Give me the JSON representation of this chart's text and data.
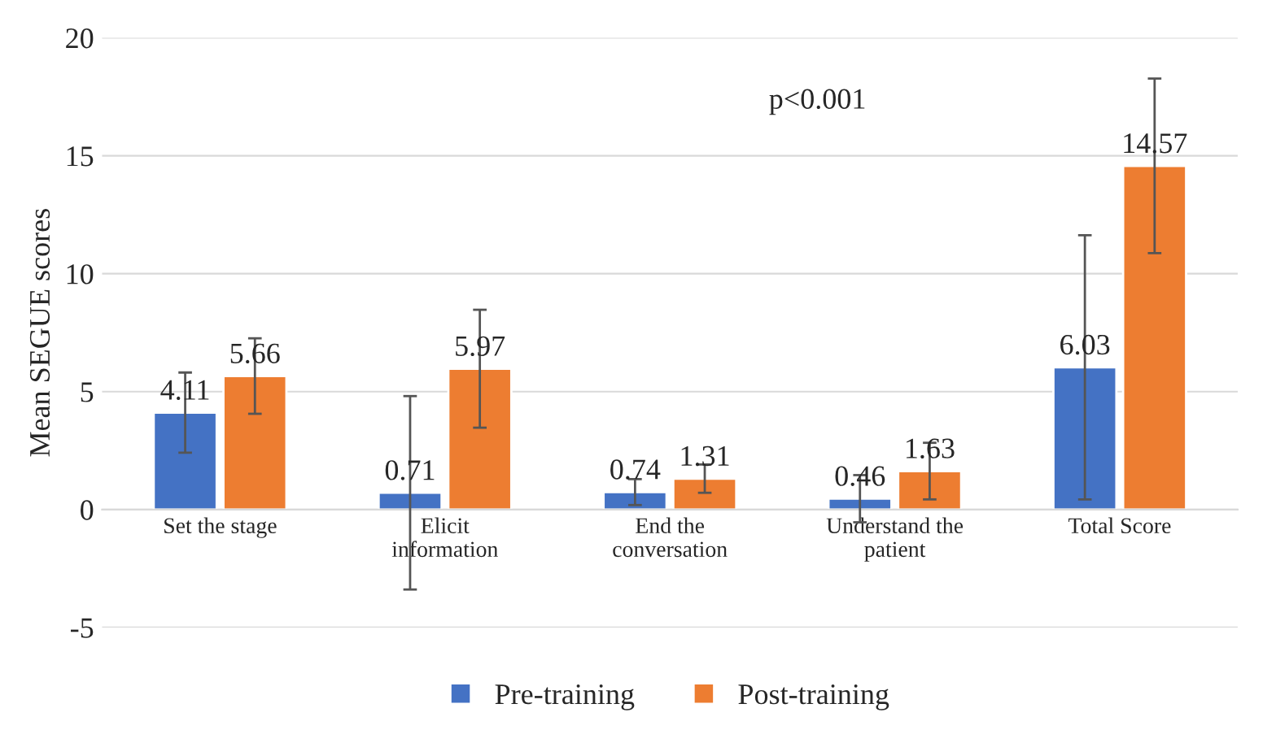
{
  "chart_data": {
    "type": "bar",
    "ylabel": "Mean SEGUE scores",
    "categories": [
      "Set the stage",
      "Elicit\ninformation",
      "End the\nconversation",
      "Understand the\npatient",
      "Total Score"
    ],
    "series": [
      {
        "name": "Pre-training",
        "color": "#4472c4",
        "values": [
          4.11,
          0.71,
          0.74,
          0.46,
          6.03
        ],
        "errors": [
          1.7,
          4.1,
          0.55,
          1.0,
          5.6
        ]
      },
      {
        "name": "Post-training",
        "color": "#ed7d31",
        "values": [
          5.66,
          5.97,
          1.31,
          1.63,
          14.57
        ],
        "errors": [
          1.6,
          2.5,
          0.6,
          1.2,
          3.7
        ]
      }
    ],
    "ylim": [
      -5,
      20
    ],
    "yticks": [
      -5,
      0,
      5,
      10,
      15,
      20
    ],
    "grid": "y",
    "legend": "bottom",
    "data_labels": true,
    "annotations": [
      "p<0.001"
    ]
  }
}
